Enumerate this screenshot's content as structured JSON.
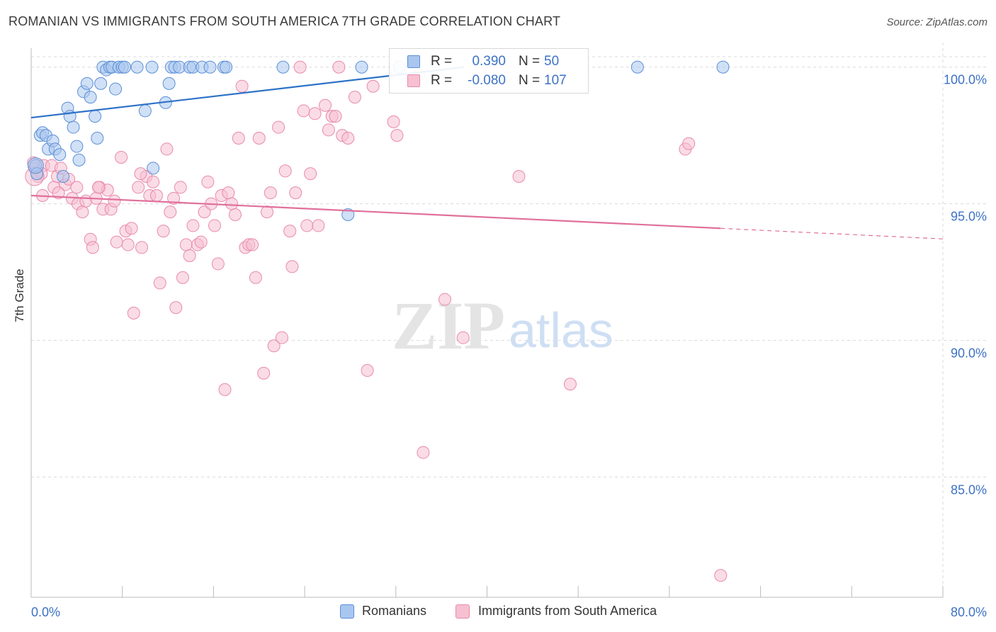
{
  "title": "ROMANIAN VS IMMIGRANTS FROM SOUTH AMERICA 7TH GRADE CORRELATION CHART",
  "source": "Source: ZipAtlas.com",
  "watermark": {
    "zip": "ZIP",
    "atlas": "atlas"
  },
  "legend": {
    "rows": [
      {
        "r_label": "R =",
        "r_value": "0.390",
        "n_label": "N =",
        "n_value": "50"
      },
      {
        "r_label": "R =",
        "r_value": "-0.080",
        "n_label": "N =",
        "n_value": "107"
      }
    ]
  },
  "bottom_legend": {
    "romanians": "Romanians",
    "immigrants": "Immigrants from South America"
  },
  "colors": {
    "blue_fill": "#a9c6ef",
    "blue_stroke": "#5b8fd6",
    "blue_line": "#2d72c8",
    "pink_fill": "#f6c0d1",
    "pink_stroke": "#e98aab",
    "pink_line": "#e0709a",
    "value_text": "#3d72c4",
    "grid": "#d9d9d9"
  },
  "chart_data": {
    "type": "scatter",
    "title": "ROMANIAN VS IMMIGRANTS FROM SOUTH AMERICA 7TH GRADE CORRELATION CHART",
    "xlabel": "",
    "ylabel": "7th Grade",
    "xlim": [
      0,
      80
    ],
    "ylim": [
      80.6,
      100.9
    ],
    "x_tick_labels": [
      "0.0%",
      "80.0%"
    ],
    "y_ticks": [
      85,
      90,
      95,
      100
    ],
    "y_tick_labels": [
      "85.0%",
      "90.0%",
      "95.0%",
      "100.0%"
    ],
    "grid": true,
    "series": [
      {
        "name": "Romanians",
        "color": "#a9c6ef",
        "R": 0.39,
        "N": 50,
        "trend": {
          "x0": 0,
          "y0": 98.15,
          "x1": 38,
          "y1": 100.0,
          "dashed_to": 38
        },
        "points": [
          [
            0.4,
            96.4
          ],
          [
            0.5,
            96.1
          ],
          [
            0.8,
            97.5
          ],
          [
            1.0,
            97.6
          ],
          [
            1.3,
            97.5
          ],
          [
            1.5,
            97.0
          ],
          [
            1.9,
            97.3
          ],
          [
            2.1,
            97.0
          ],
          [
            2.5,
            96.8
          ],
          [
            2.8,
            96.0
          ],
          [
            3.2,
            98.5
          ],
          [
            3.4,
            98.2
          ],
          [
            3.7,
            97.8
          ],
          [
            4.0,
            97.1
          ],
          [
            4.2,
            96.6
          ],
          [
            4.6,
            99.1
          ],
          [
            4.9,
            99.4
          ],
          [
            5.2,
            98.9
          ],
          [
            5.6,
            98.2
          ],
          [
            5.8,
            97.4
          ],
          [
            6.1,
            99.4
          ],
          [
            6.3,
            100.0
          ],
          [
            6.6,
            99.9
          ],
          [
            6.9,
            100.0
          ],
          [
            7.1,
            100.0
          ],
          [
            7.4,
            99.2
          ],
          [
            7.7,
            100.0
          ],
          [
            8.0,
            100.0
          ],
          [
            8.2,
            100.0
          ],
          [
            9.3,
            100.0
          ],
          [
            10.0,
            98.4
          ],
          [
            10.6,
            100.0
          ],
          [
            10.7,
            96.3
          ],
          [
            11.8,
            98.7
          ],
          [
            12.1,
            99.4
          ],
          [
            12.3,
            100.0
          ],
          [
            12.6,
            100.0
          ],
          [
            13.0,
            100.0
          ],
          [
            13.9,
            100.0
          ],
          [
            14.2,
            100.0
          ],
          [
            15.0,
            100.0
          ],
          [
            15.7,
            100.0
          ],
          [
            16.9,
            100.0
          ],
          [
            17.1,
            100.0
          ],
          [
            22.1,
            100.0
          ],
          [
            27.8,
            94.6
          ],
          [
            29.0,
            100.0
          ],
          [
            32.3,
            100.0
          ],
          [
            53.2,
            100.0
          ],
          [
            60.7,
            100.0
          ]
        ]
      },
      {
        "name": "Immigrants from South America",
        "color": "#f6c0d1",
        "R": -0.08,
        "N": 107,
        "trend": {
          "x0": 0,
          "y0": 95.3,
          "x1": 60.5,
          "y1": 94.1,
          "dashed_to": 80
        },
        "points": [
          [
            0.3,
            96.3
          ],
          [
            0.6,
            96.0
          ],
          [
            1.0,
            95.3
          ],
          [
            1.1,
            96.4
          ],
          [
            1.8,
            96.4
          ],
          [
            2.0,
            95.6
          ],
          [
            2.3,
            96.0
          ],
          [
            2.6,
            96.3
          ],
          [
            3.0,
            95.7
          ],
          [
            3.3,
            95.9
          ],
          [
            3.6,
            95.2
          ],
          [
            4.0,
            95.6
          ],
          [
            4.1,
            95.0
          ],
          [
            4.5,
            94.7
          ],
          [
            4.8,
            95.1
          ],
          [
            5.2,
            93.7
          ],
          [
            5.4,
            93.4
          ],
          [
            5.7,
            95.2
          ],
          [
            6.0,
            95.6
          ],
          [
            6.3,
            94.8
          ],
          [
            6.7,
            95.5
          ],
          [
            7.0,
            94.8
          ],
          [
            7.3,
            95.1
          ],
          [
            7.5,
            93.6
          ],
          [
            7.9,
            96.7
          ],
          [
            8.3,
            94.0
          ],
          [
            8.5,
            93.5
          ],
          [
            8.8,
            94.1
          ],
          [
            9.0,
            91.0
          ],
          [
            9.4,
            95.6
          ],
          [
            9.7,
            93.4
          ],
          [
            10.1,
            96.0
          ],
          [
            10.4,
            95.3
          ],
          [
            10.7,
            95.8
          ],
          [
            11.0,
            95.3
          ],
          [
            11.3,
            92.1
          ],
          [
            11.6,
            94.0
          ],
          [
            11.9,
            97.0
          ],
          [
            12.2,
            94.7
          ],
          [
            12.5,
            95.2
          ],
          [
            12.7,
            91.2
          ],
          [
            13.1,
            95.6
          ],
          [
            13.3,
            92.3
          ],
          [
            13.6,
            93.5
          ],
          [
            13.9,
            93.1
          ],
          [
            14.2,
            94.2
          ],
          [
            14.6,
            93.5
          ],
          [
            14.9,
            93.6
          ],
          [
            15.2,
            94.7
          ],
          [
            15.5,
            95.8
          ],
          [
            15.8,
            95.0
          ],
          [
            16.1,
            94.2
          ],
          [
            16.4,
            92.8
          ],
          [
            16.7,
            95.3
          ],
          [
            17.0,
            88.2
          ],
          [
            17.3,
            95.4
          ],
          [
            17.6,
            95.0
          ],
          [
            17.9,
            94.6
          ],
          [
            18.2,
            97.4
          ],
          [
            18.5,
            99.3
          ],
          [
            18.8,
            93.4
          ],
          [
            19.1,
            93.5
          ],
          [
            19.4,
            93.5
          ],
          [
            19.7,
            92.3
          ],
          [
            20.0,
            97.4
          ],
          [
            20.4,
            88.8
          ],
          [
            20.7,
            94.7
          ],
          [
            21.0,
            95.4
          ],
          [
            21.3,
            89.8
          ],
          [
            21.7,
            97.8
          ],
          [
            22.0,
            90.1
          ],
          [
            22.3,
            96.2
          ],
          [
            22.7,
            94.0
          ],
          [
            22.9,
            92.7
          ],
          [
            23.2,
            95.4
          ],
          [
            23.6,
            100.0
          ],
          [
            23.9,
            98.4
          ],
          [
            24.2,
            94.2
          ],
          [
            24.5,
            96.1
          ],
          [
            24.9,
            98.3
          ],
          [
            25.2,
            94.2
          ],
          [
            25.8,
            98.6
          ],
          [
            26.1,
            97.7
          ],
          [
            26.4,
            98.2
          ],
          [
            26.7,
            98.2
          ],
          [
            27.0,
            100.0
          ],
          [
            27.3,
            97.5
          ],
          [
            27.8,
            97.4
          ],
          [
            28.4,
            98.9
          ],
          [
            29.5,
            88.9
          ],
          [
            31.8,
            98.0
          ],
          [
            32.1,
            97.5
          ],
          [
            34.0,
            99.7
          ],
          [
            34.4,
            85.9
          ],
          [
            36.3,
            91.5
          ],
          [
            37.9,
            90.1
          ],
          [
            42.8,
            96.0
          ],
          [
            47.3,
            88.4
          ],
          [
            57.4,
            97.0
          ],
          [
            57.7,
            97.2
          ],
          [
            60.5,
            81.4
          ],
          [
            0.2,
            96.5
          ],
          [
            0.9,
            96.1
          ],
          [
            2.4,
            95.4
          ],
          [
            5.9,
            95.6
          ],
          [
            9.6,
            96.1
          ],
          [
            30.0,
            99.3
          ]
        ]
      }
    ]
  }
}
